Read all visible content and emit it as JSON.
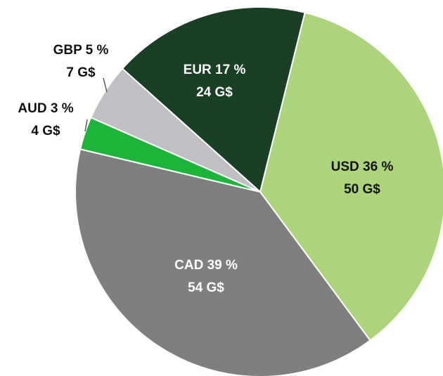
{
  "chart_data": {
    "type": "pie",
    "categories": [
      "USD",
      "CAD",
      "AUD",
      "GBP",
      "EUR"
    ],
    "labels": [
      "USD 36 %",
      "CAD 39 %",
      "AUD 3 %",
      "GBP 5 %",
      "EUR 17 %"
    ],
    "values": [
      50,
      54,
      4,
      7,
      24
    ],
    "value_labels": [
      "50 G$",
      "54 G$",
      "4 G$",
      "7 G$",
      "24 G$"
    ],
    "colors": [
      "#acd47a",
      "#7f7f7f",
      "#1db43a",
      "#bfbfc4",
      "#193f24"
    ]
  }
}
